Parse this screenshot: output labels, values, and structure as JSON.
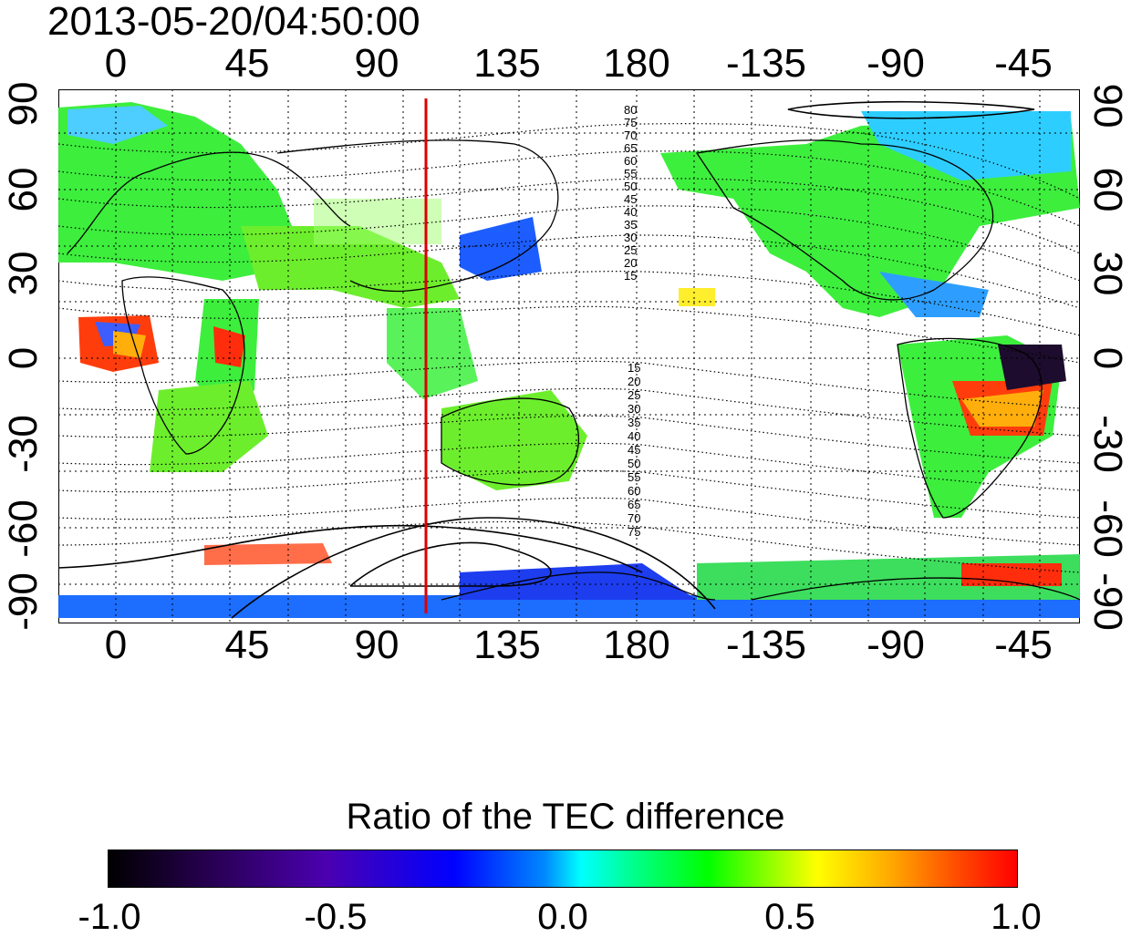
{
  "timestamp": "2013-05-20/04:50:00",
  "top_axis_labels": [
    "0",
    "45",
    "90",
    "135",
    "180",
    "-135",
    "-90",
    "-45"
  ],
  "bottom_axis_labels": [
    "0",
    "45",
    "90",
    "135",
    "180",
    "-135",
    "-90",
    "-45"
  ],
  "left_axis_labels": [
    "90",
    "60",
    "30",
    "0",
    "-30",
    "-60",
    "-90"
  ],
  "right_axis_labels": [
    "90",
    "60",
    "30",
    "0",
    "-30",
    "-60",
    "-90"
  ],
  "contour_labels_north": [
    "80",
    "75",
    "70",
    "65",
    "60",
    "55",
    "50",
    "45",
    "40",
    "35",
    "30",
    "25",
    "20",
    "15"
  ],
  "contour_labels_south": [
    "15",
    "20",
    "25",
    "30",
    "35",
    "40",
    "45",
    "50",
    "55",
    "60",
    "65",
    "70",
    "75"
  ],
  "colorbar": {
    "title": "Ratio of the TEC difference",
    "ticks": [
      "-1.0",
      "-0.5",
      "0.0",
      "0.5",
      "1.0"
    ],
    "range": [
      -1.0,
      1.0
    ],
    "colormap": [
      "#000000",
      "#4b00b0",
      "#0000ff",
      "#00ffff",
      "#00ff00",
      "#ffff00",
      "#ff0000"
    ]
  },
  "terminator_line": {
    "longitude_deg": 108,
    "color": "#dd0000"
  },
  "map_colors": {
    "neutral_green": "#33ee33",
    "depletion_blue": "#1144ff",
    "enhancement_red": "#ff2200",
    "coastline": "#000000"
  }
}
